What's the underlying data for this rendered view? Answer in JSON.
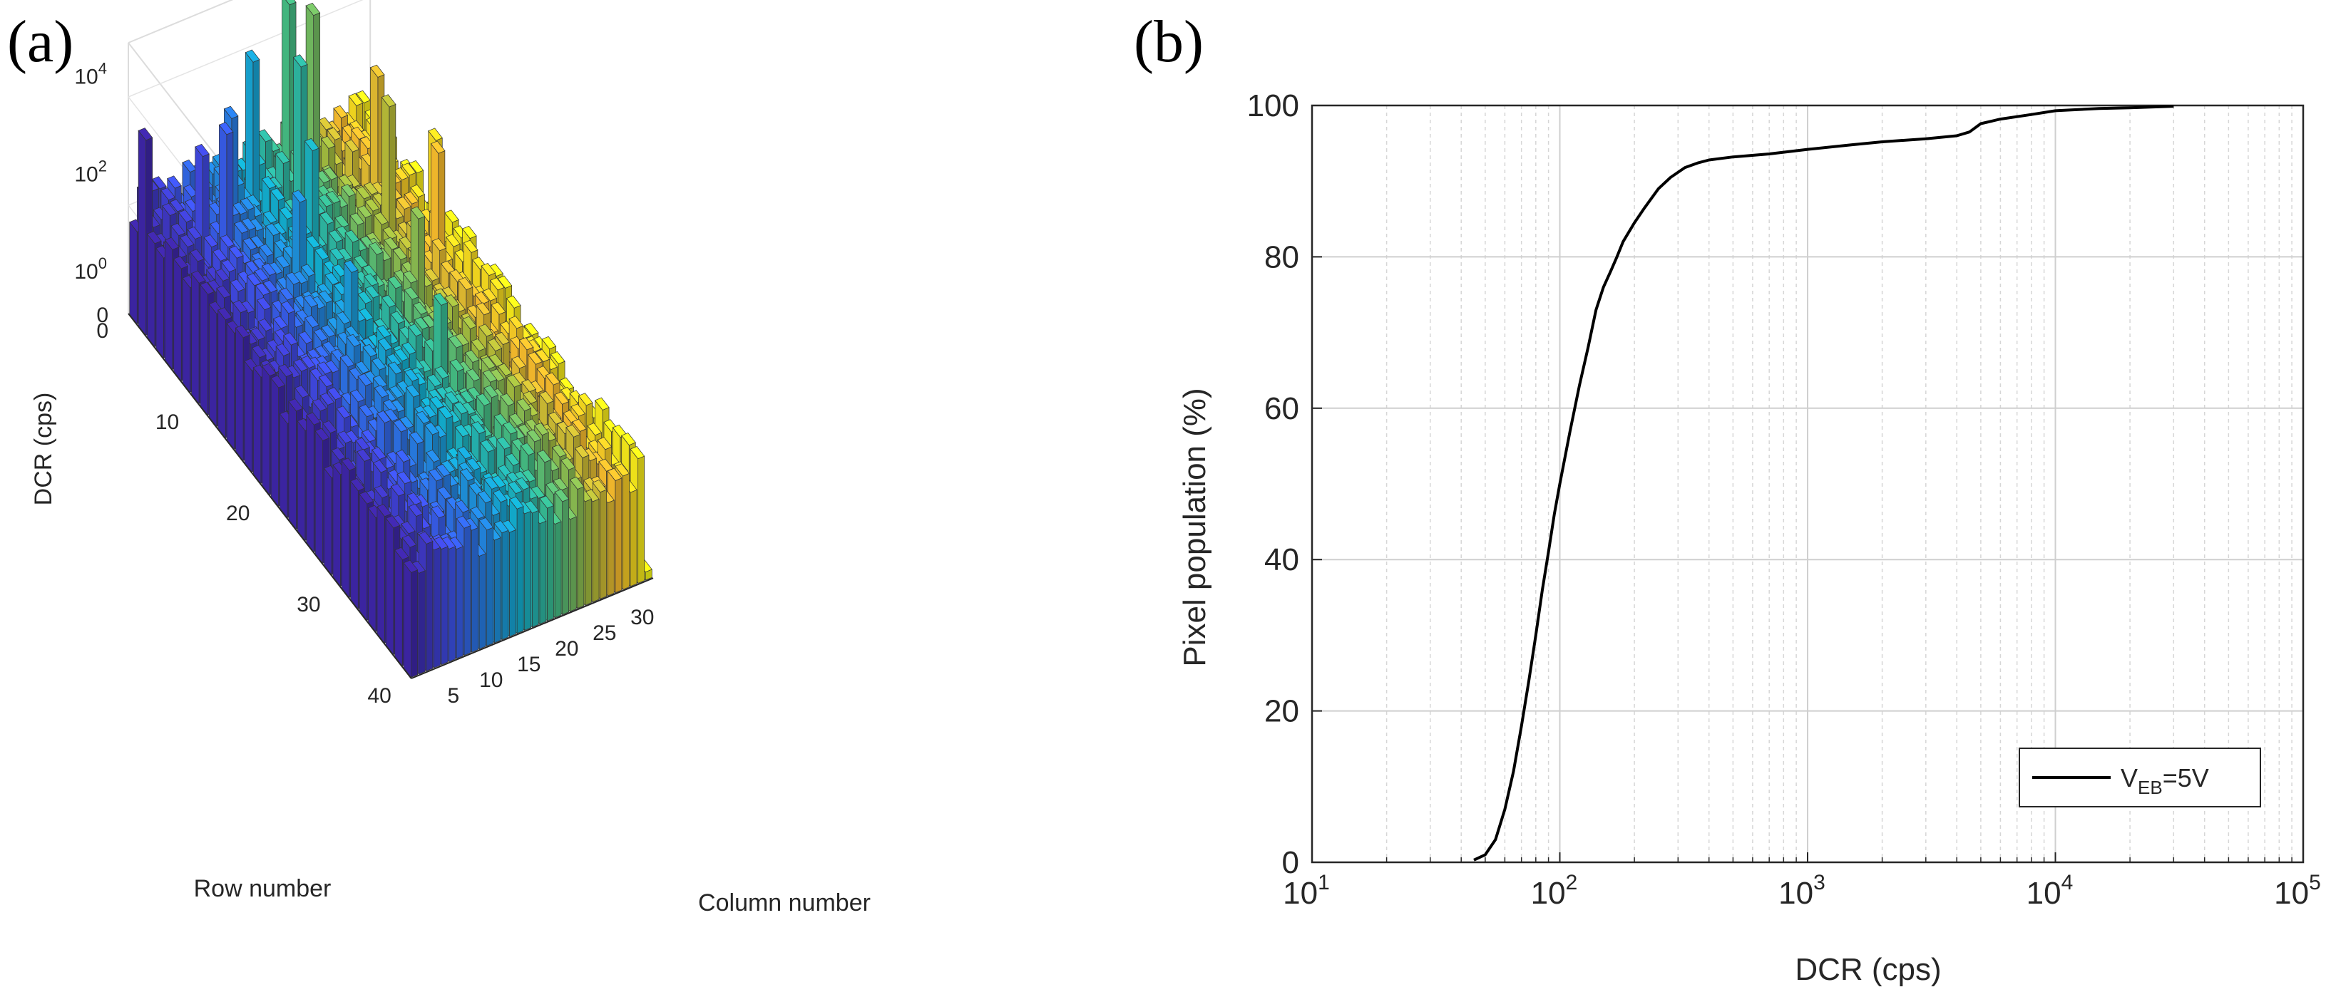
{
  "panels": {
    "a_label": "(a)",
    "b_label": "(b)"
  },
  "chart_data": [
    {
      "type": "bar3d",
      "panel": "(a)",
      "title": "",
      "xlabel": "Column number",
      "ylabel": "Row number",
      "zlabel": "DCR (cps)",
      "x_ticks": [
        "5",
        "10",
        "15",
        "20",
        "25",
        "30"
      ],
      "y_ticks": [
        "0",
        "10",
        "20",
        "30",
        "40"
      ],
      "z_ticks": [
        {
          "base": "10",
          "exp": "0"
        },
        {
          "base": "10",
          "exp": "2"
        },
        {
          "base": "10",
          "exp": "4"
        }
      ],
      "z_zero_label": "0",
      "columns": 32,
      "rows": 32,
      "z_scale": "log10",
      "colormap": "parula by column",
      "typical_log10_dcr_range": [
        1.7,
        2.4
      ],
      "hot_pixels_log10_dcr": [
        {
          "column": 1,
          "row": 2,
          "log10_dcr": 3.6
        },
        {
          "column": 3,
          "row": 18,
          "log10_dcr": 2.1
        },
        {
          "column": 5,
          "row": 5,
          "log10_dcr": 3.7
        },
        {
          "column": 7,
          "row": 6,
          "log10_dcr": 4.2
        },
        {
          "column": 10,
          "row": 4,
          "log10_dcr": 3.9
        },
        {
          "column": 12,
          "row": 10,
          "log10_dcr": 3.5
        },
        {
          "column": 13,
          "row": 15,
          "log10_dcr": 3.2
        },
        {
          "column": 14,
          "row": 3,
          "log10_dcr": 4.5
        },
        {
          "column": 16,
          "row": 8,
          "log10_dcr": 3.8
        },
        {
          "column": 18,
          "row": 5,
          "log10_dcr": 4.6
        },
        {
          "column": 19,
          "row": 20,
          "log10_dcr": 3.3
        },
        {
          "column": 20,
          "row": 2,
          "log10_dcr": 5.0
        },
        {
          "column": 22,
          "row": 3,
          "log10_dcr": 4.9
        },
        {
          "column": 23,
          "row": 14,
          "log10_dcr": 3.4
        },
        {
          "column": 25,
          "row": 9,
          "log10_dcr": 4.3
        },
        {
          "column": 27,
          "row": 6,
          "log10_dcr": 4.1
        },
        {
          "column": 28,
          "row": 12,
          "log10_dcr": 3.9
        },
        {
          "column": 30,
          "row": 10,
          "log10_dcr": 3.6
        }
      ]
    },
    {
      "type": "line",
      "panel": "(b)",
      "title": "",
      "xlabel": "DCR (cps)",
      "ylabel": "Pixel population (%)",
      "x_scale": "log10",
      "xlim": [
        10,
        100000
      ],
      "ylim": [
        0,
        100
      ],
      "x_ticks": [
        {
          "base": "10",
          "exp": "1"
        },
        {
          "base": "10",
          "exp": "2"
        },
        {
          "base": "10",
          "exp": "3"
        },
        {
          "base": "10",
          "exp": "4"
        },
        {
          "base": "10",
          "exp": "5"
        }
      ],
      "y_ticks": [
        "0",
        "20",
        "40",
        "60",
        "80",
        "100"
      ],
      "grid": true,
      "legend_position": "bottom-right",
      "series": [
        {
          "name_main": "V",
          "name_sub": "EB",
          "name_suffix": "=5V",
          "x": [
            45,
            50,
            55,
            60,
            65,
            70,
            75,
            80,
            85,
            90,
            95,
            100,
            110,
            120,
            130,
            140,
            150,
            160,
            170,
            180,
            200,
            220,
            250,
            280,
            320,
            360,
            400,
            500,
            700,
            1000,
            1500,
            2000,
            3000,
            4000,
            4500,
            5000,
            6000,
            8000,
            10000,
            15000,
            20000,
            30000
          ],
          "y": [
            0.3,
            1.0,
            3.0,
            7.0,
            12.0,
            18.0,
            24.0,
            30.0,
            36.0,
            41.0,
            46.0,
            50.0,
            57.0,
            63.0,
            68.0,
            73.0,
            76.0,
            78.0,
            80.0,
            82.0,
            84.5,
            86.5,
            89.0,
            90.5,
            91.8,
            92.4,
            92.8,
            93.2,
            93.6,
            94.2,
            94.8,
            95.2,
            95.6,
            96.0,
            96.5,
            97.6,
            98.2,
            98.8,
            99.3,
            99.6,
            99.7,
            99.9
          ]
        }
      ]
    }
  ]
}
